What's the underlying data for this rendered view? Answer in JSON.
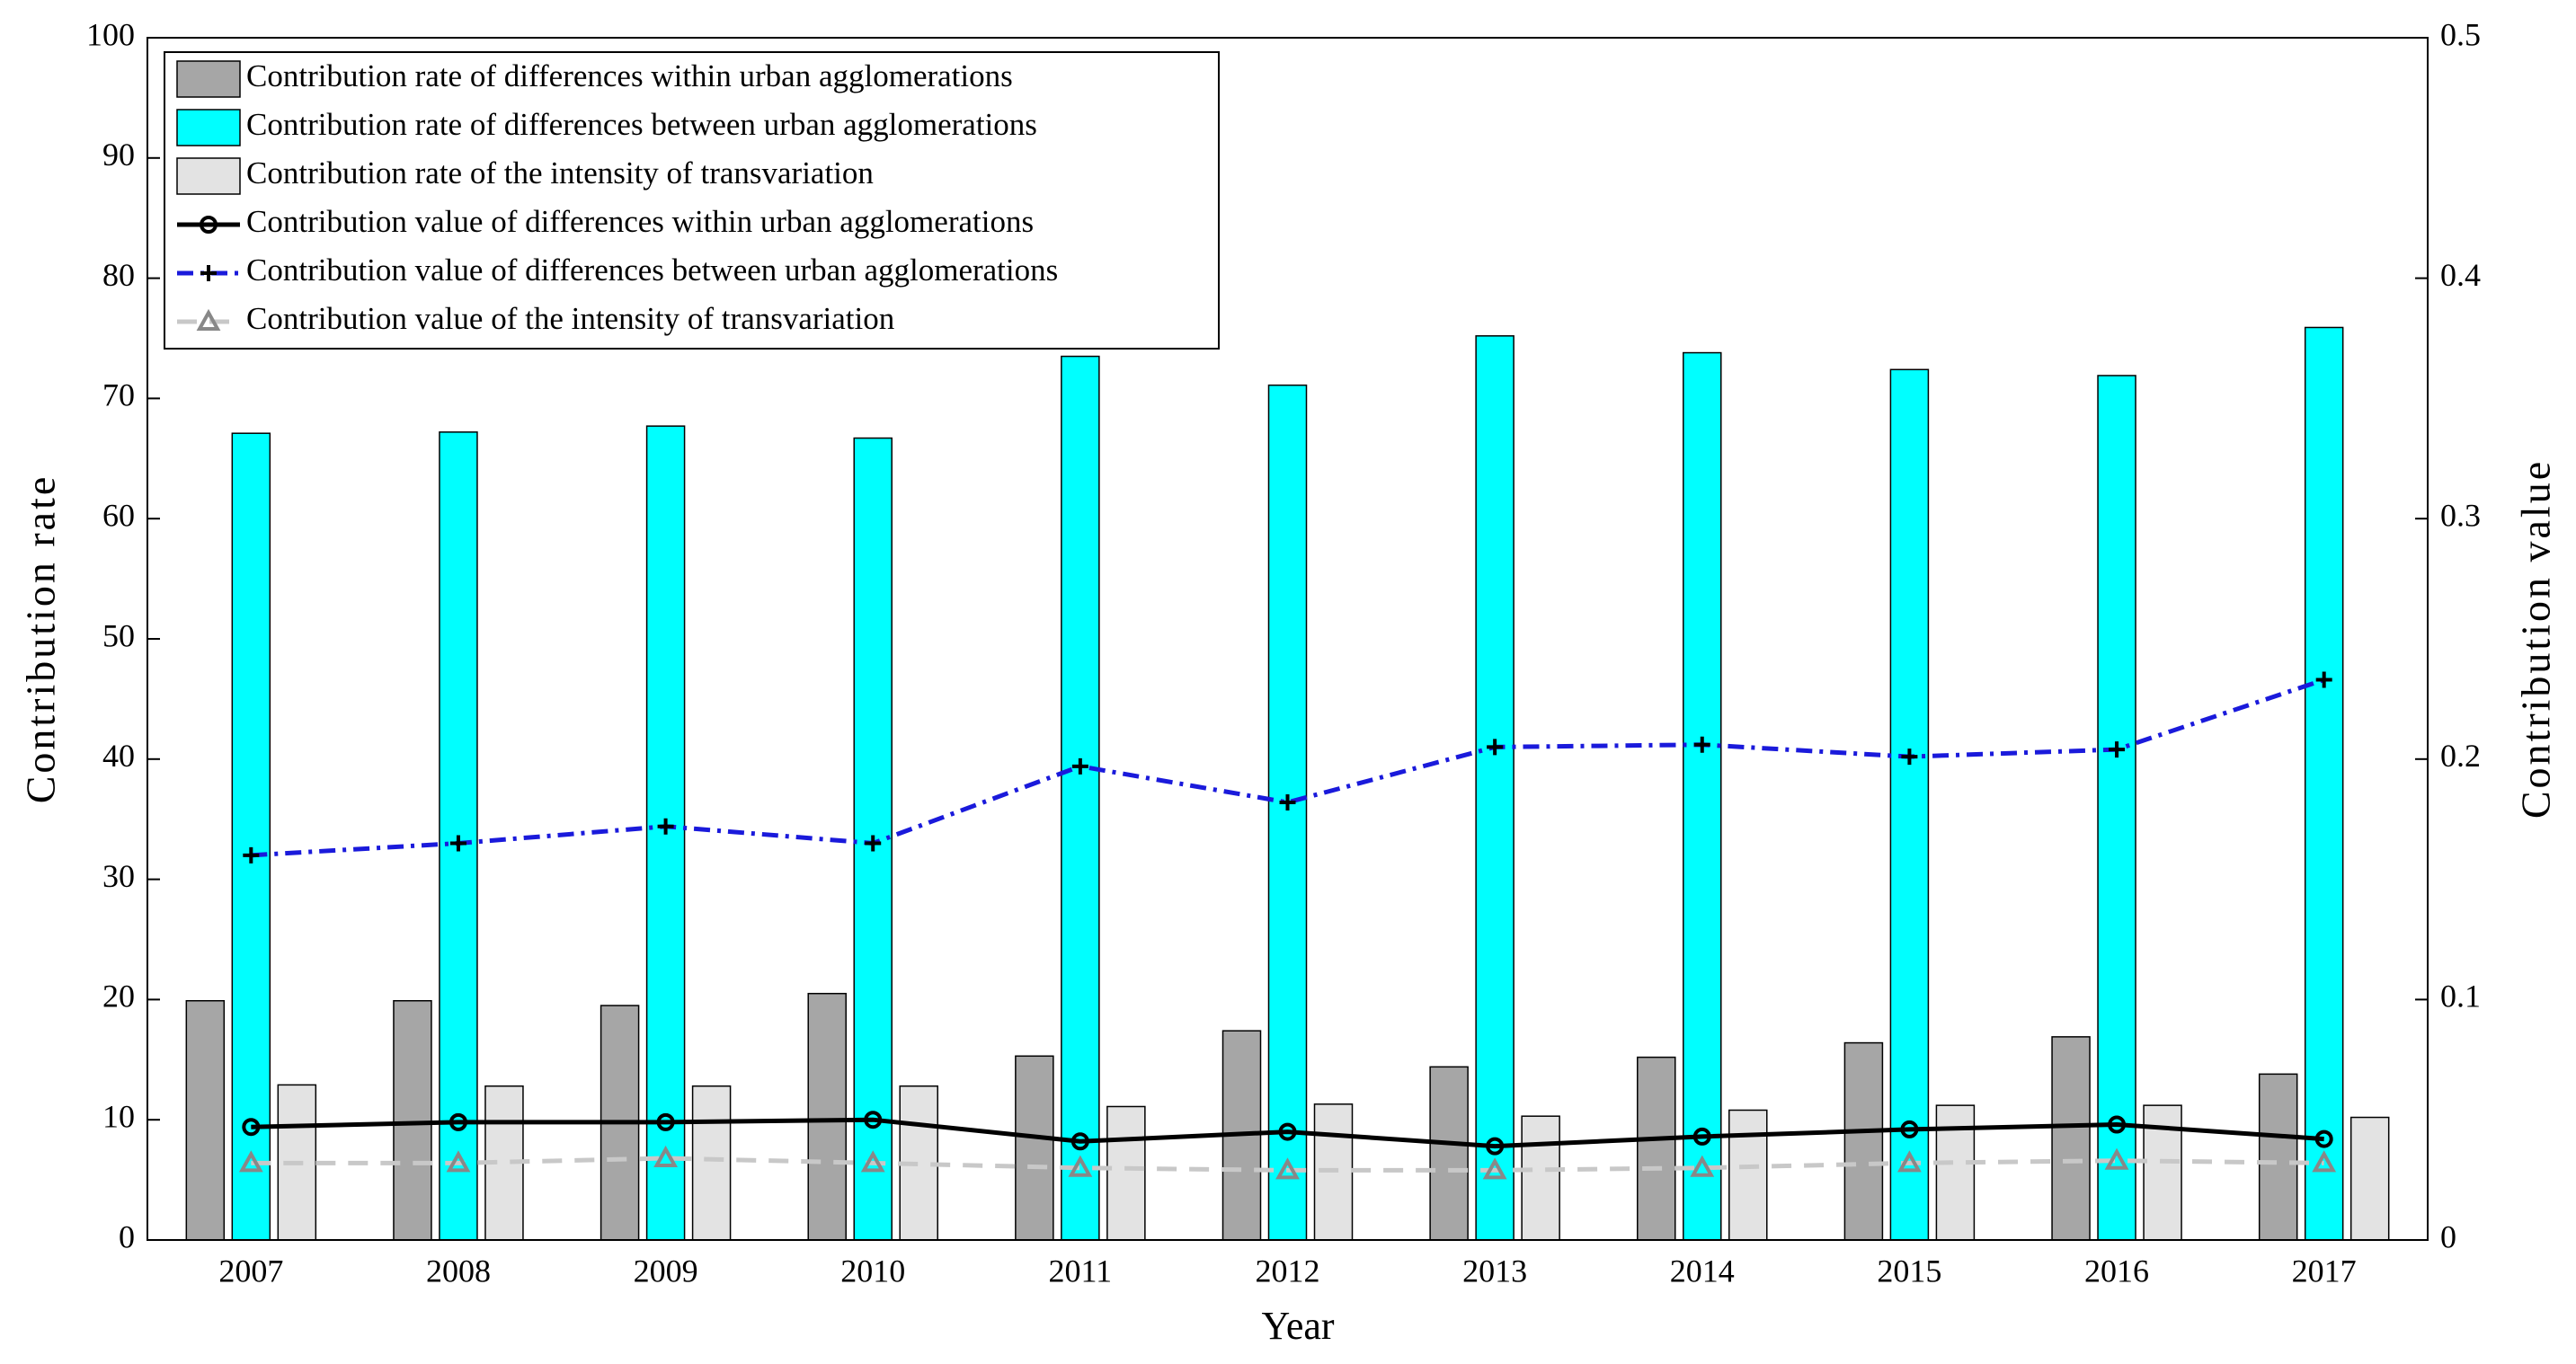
{
  "chart_data": {
    "type": "bar",
    "xlabel": "Year",
    "ylabel": "Contribution rate",
    "y2label": "Contribution value",
    "categories": [
      "2007",
      "2008",
      "2009",
      "2010",
      "2011",
      "2012",
      "2013",
      "2014",
      "2015",
      "2016",
      "2017"
    ],
    "ylim": [
      0,
      100
    ],
    "yticks": [
      0,
      10,
      20,
      30,
      40,
      50,
      60,
      70,
      80,
      90,
      100
    ],
    "y2lim": [
      0,
      0.5
    ],
    "y2ticks": [
      0,
      0.1,
      0.2,
      0.3,
      0.4,
      0.5
    ],
    "legend": "upper left",
    "series": [
      {
        "name": "Contribution rate of differences within urban agglomerations",
        "type": "bar",
        "color": "#a6a6a6",
        "values": [
          19.9,
          19.9,
          19.5,
          20.5,
          15.3,
          17.4,
          14.4,
          15.2,
          16.4,
          16.9,
          13.8
        ]
      },
      {
        "name": "Contribution rate of differences between urban agglomerations",
        "type": "bar",
        "color": "#00ffff",
        "values": [
          67.1,
          67.2,
          67.7,
          66.7,
          73.5,
          71.1,
          75.2,
          73.8,
          72.4,
          71.9,
          75.9
        ]
      },
      {
        "name": "Contribution rate of the intensity of transvariation",
        "type": "bar",
        "color": "#e3e3e3",
        "values": [
          12.9,
          12.8,
          12.8,
          12.8,
          11.1,
          11.3,
          10.3,
          10.8,
          11.2,
          11.2,
          10.2
        ]
      },
      {
        "name": "Contribution value of differences within urban agglomerations",
        "type": "line",
        "axis": "y2",
        "color": "#000000",
        "marker": "circle",
        "dash": "solid",
        "values": [
          0.047,
          0.049,
          0.049,
          0.05,
          0.041,
          0.045,
          0.039,
          0.043,
          0.046,
          0.048,
          0.042
        ]
      },
      {
        "name": "Contribution value of differences between urban agglomerations",
        "type": "line",
        "axis": "y2",
        "color": "#1a1adb",
        "marker": "plus",
        "dash": "dashdot",
        "values": [
          0.16,
          0.165,
          0.172,
          0.165,
          0.197,
          0.182,
          0.205,
          0.206,
          0.201,
          0.204,
          0.233
        ]
      },
      {
        "name": "Contribution value of the intensity of transvariation",
        "type": "line",
        "axis": "y2",
        "color": "#c8c8c8",
        "marker": "triangle",
        "dash": "dashed",
        "values": [
          0.032,
          0.032,
          0.034,
          0.032,
          0.03,
          0.029,
          0.029,
          0.03,
          0.032,
          0.033,
          0.032
        ]
      }
    ]
  }
}
